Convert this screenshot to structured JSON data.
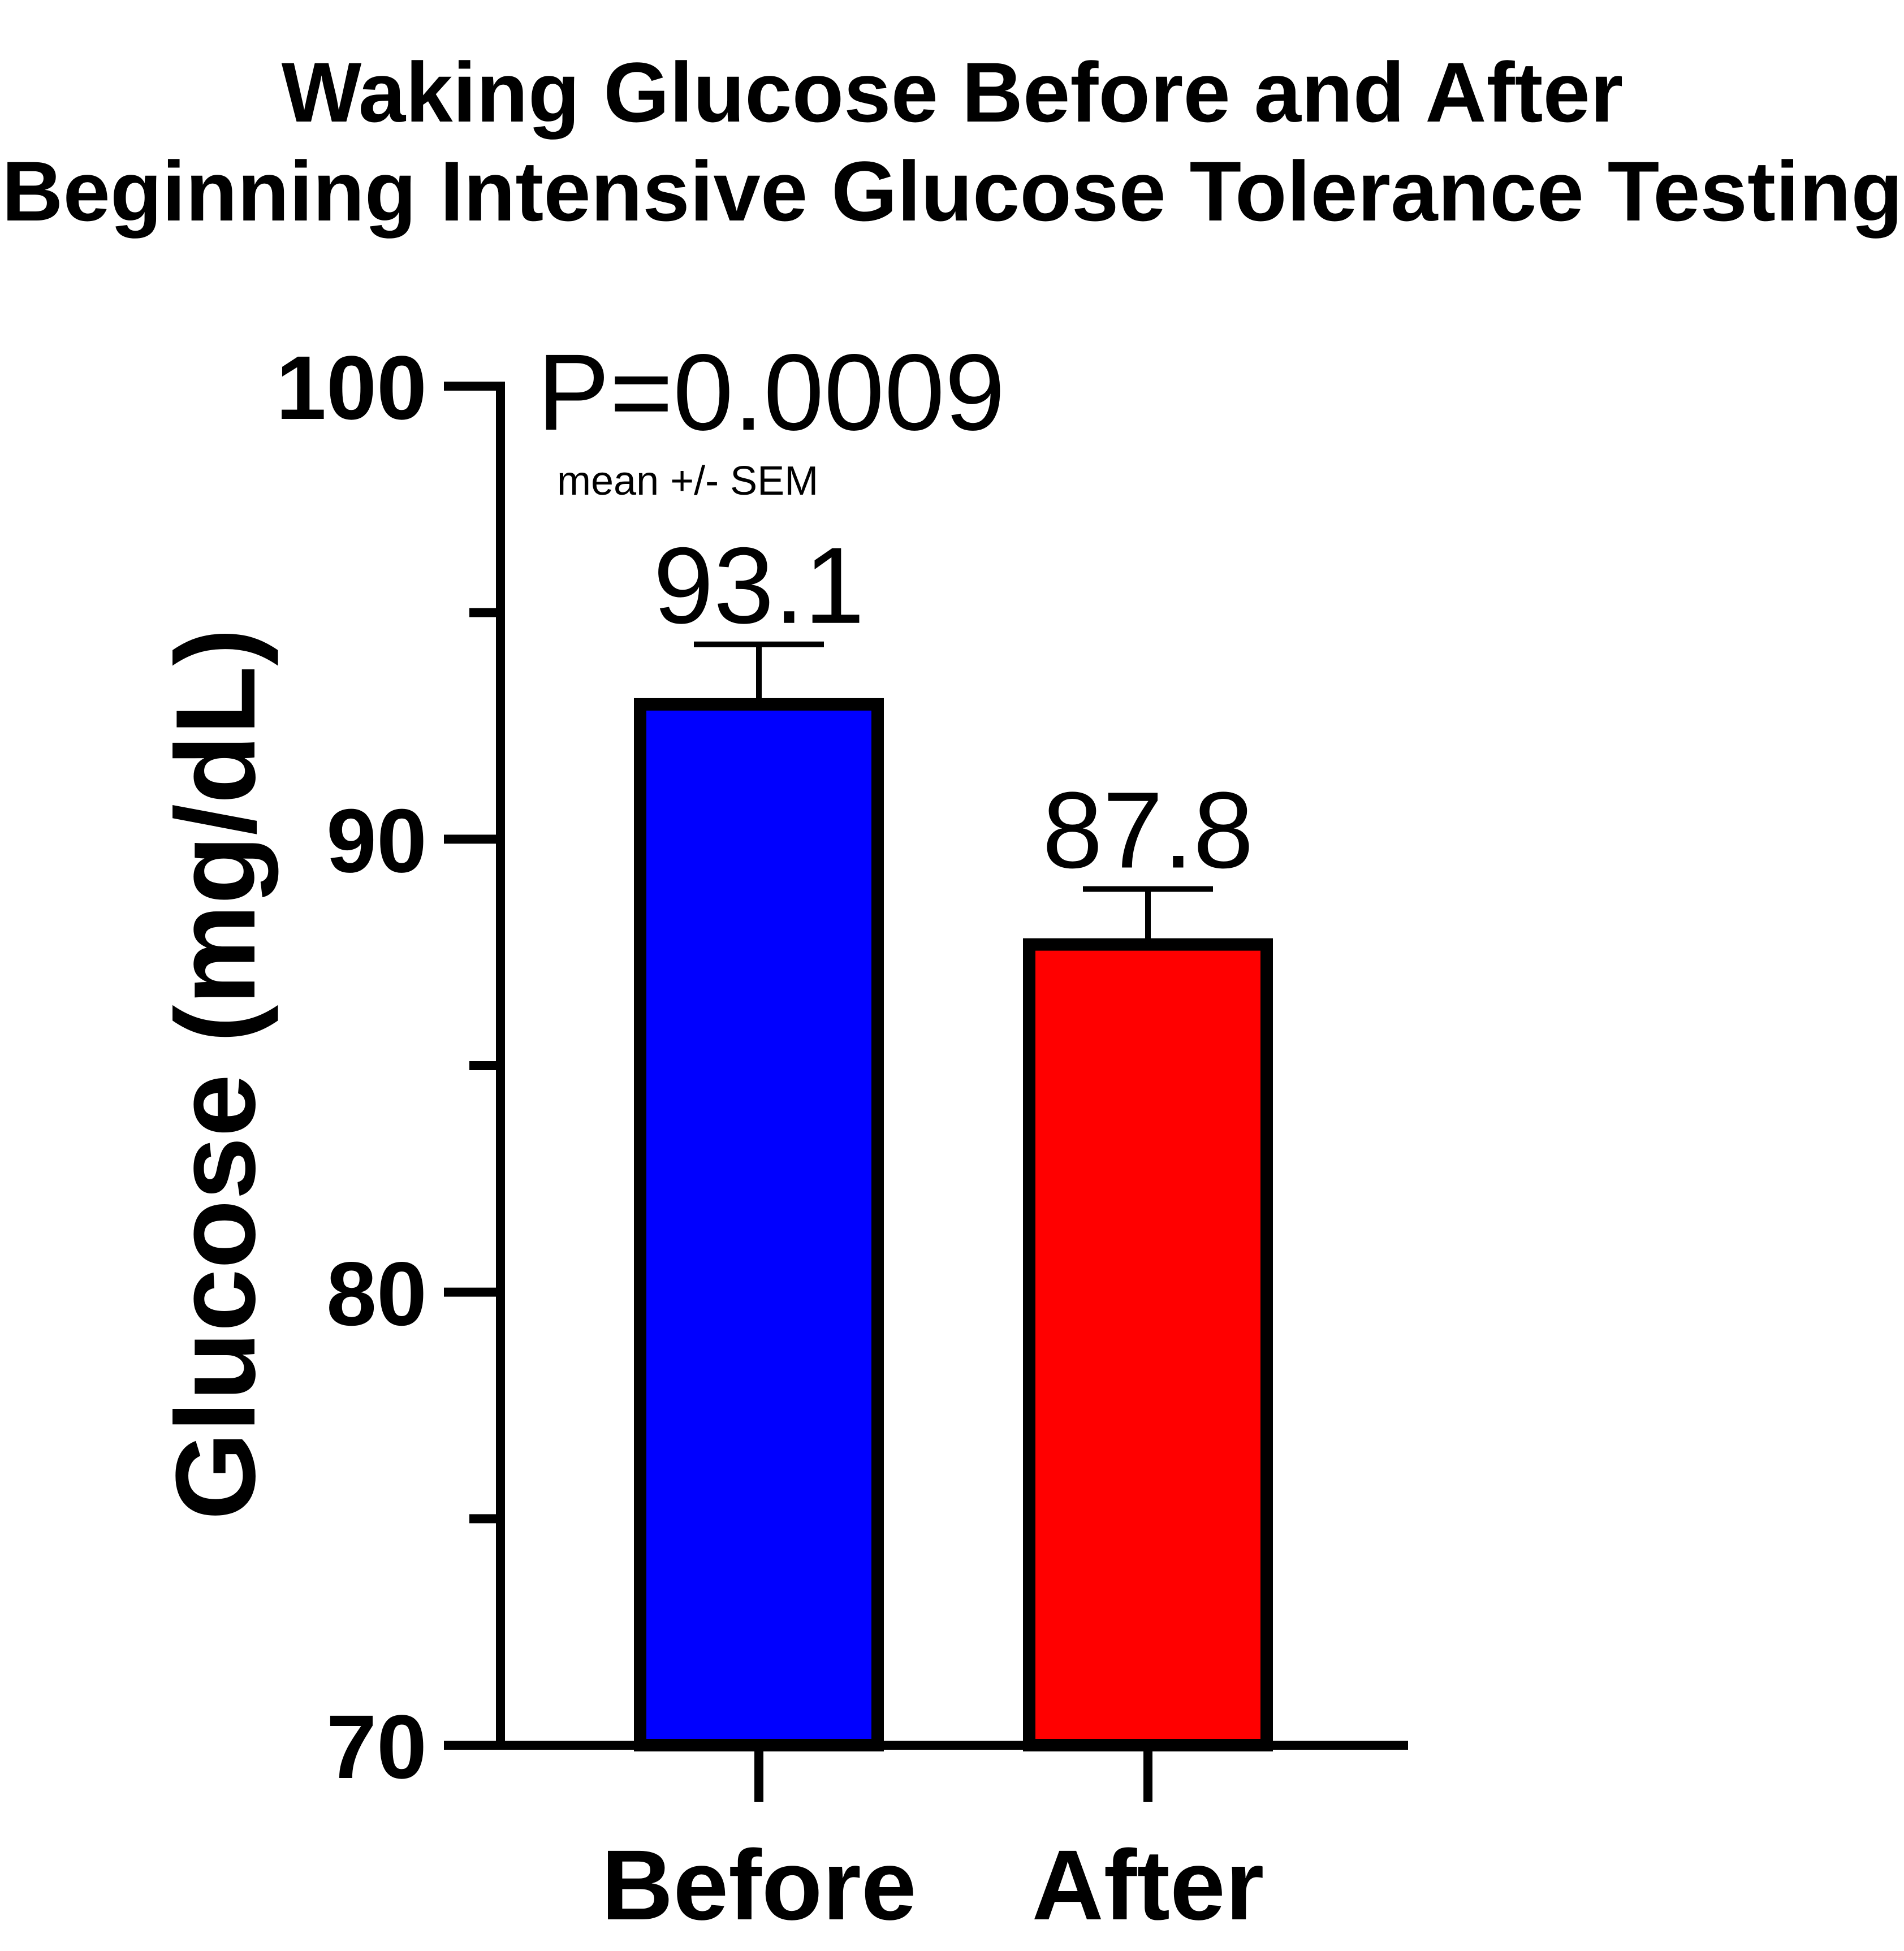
{
  "chart_data": {
    "type": "bar",
    "title": "Waking Glucose Before and After",
    "subtitle": "Beginning Intensive Glucose Tolerance Testing",
    "ylabel": "Glucose (mg/dL)",
    "xlabel": "",
    "ylim": [
      70,
      100
    ],
    "yticks": [
      "70",
      "80",
      "90",
      "100"
    ],
    "minor_ticks": [
      75,
      85,
      95
    ],
    "categories": [
      "Before",
      "After"
    ],
    "values": [
      93.1,
      87.8
    ],
    "value_labels": [
      "93.1",
      "87.8"
    ],
    "errors": [
      1.2,
      1.1
    ],
    "colors": [
      "#0000ff",
      "#ff0000"
    ],
    "annotation": "P=0.0009",
    "note": "mean +/- SEM",
    "grid": false
  }
}
